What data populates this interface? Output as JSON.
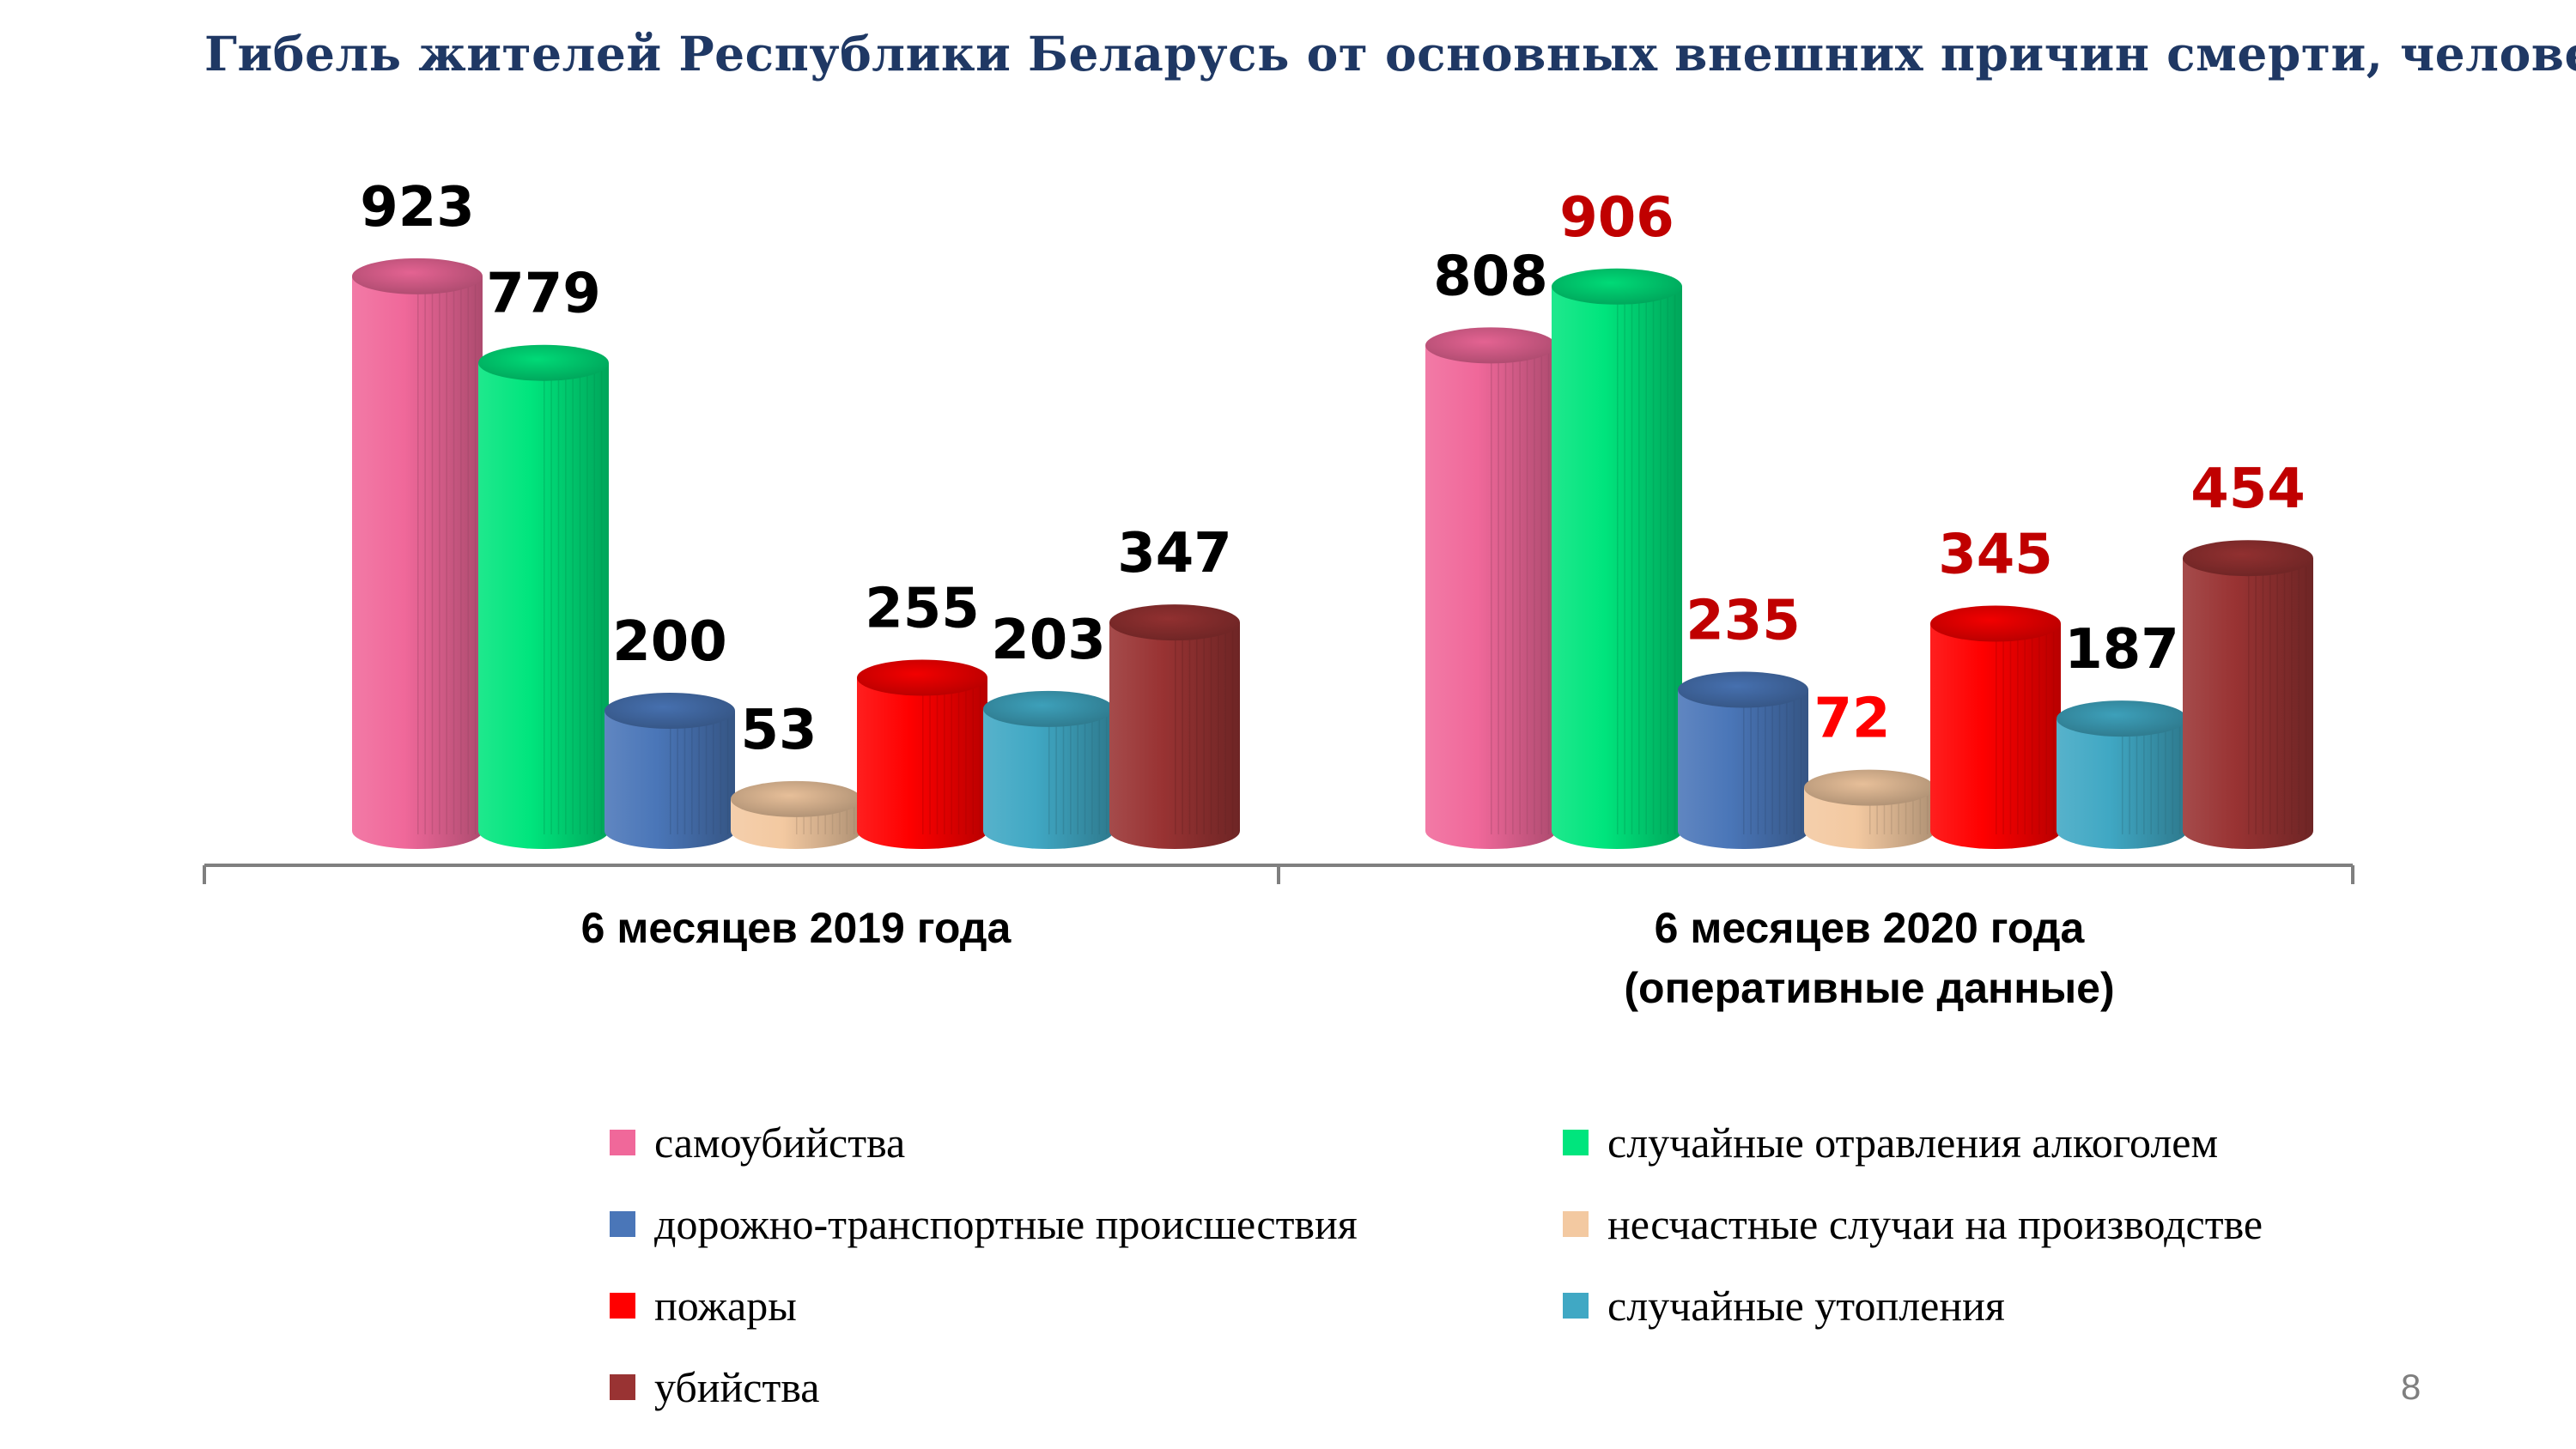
{
  "title": "Гибель жителей Республики Беларусь от основных внешних причин смерти, человек",
  "page_number": "8",
  "chart_data": {
    "type": "bar",
    "title": "Гибель жителей Республики Беларусь от основных внешних причин смерти, человек",
    "categories": [
      [
        "6 месяцев 2019 года"
      ],
      [
        "6 месяцев 2020 года",
        "(оперативные данные)"
      ]
    ],
    "series": [
      {
        "name": "самоубийства",
        "color": "#f0689a",
        "values": [
          923,
          808
        ],
        "label_colors": [
          "#000000",
          "#000000"
        ]
      },
      {
        "name": "случайные отравления алкоголем",
        "color": "#00e57d",
        "values": [
          779,
          906
        ],
        "label_colors": [
          "#000000",
          "#c00000"
        ]
      },
      {
        "name": "дорожно-транспортные происшествия",
        "color": "#4a76b8",
        "values": [
          200,
          235
        ],
        "label_colors": [
          "#000000",
          "#c00000"
        ]
      },
      {
        "name": "несчастные случаи на производстве",
        "color": "#f3c9a1",
        "values": [
          53,
          72
        ],
        "label_colors": [
          "#000000",
          "#ff0000"
        ]
      },
      {
        "name": "пожары",
        "color": "#ff0000",
        "values": [
          255,
          345
        ],
        "label_colors": [
          "#000000",
          "#c00000"
        ]
      },
      {
        "name": "случайные утопления",
        "color": "#40a8c4",
        "values": [
          203,
          187
        ],
        "label_colors": [
          "#000000",
          "#000000"
        ]
      },
      {
        "name": "убийства",
        "color": "#993333",
        "values": [
          347,
          454
        ],
        "label_colors": [
          "#000000",
          "#c00000"
        ]
      }
    ],
    "xlabel": "",
    "ylabel": "",
    "ylim": [
      0,
      1000
    ],
    "grid": false,
    "legend_position": "bottom",
    "style": "3d-cylinder"
  }
}
